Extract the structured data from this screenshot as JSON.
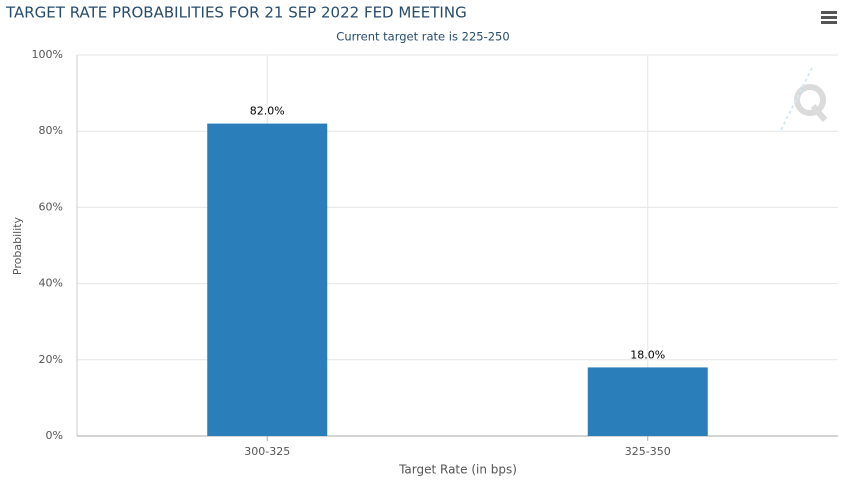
{
  "chart_data": {
    "type": "bar",
    "title": "TARGET RATE PROBABILITIES FOR 21 SEP 2022 FED MEETING",
    "subtitle": "Current target rate is 225-250",
    "x_label": "Target Rate (in bps)",
    "y_label": "Probability",
    "categories": [
      "300-325",
      "325-350"
    ],
    "values": [
      82,
      18
    ],
    "value_labels": [
      "82.0%",
      "18.0%"
    ],
    "color": "#2a7fba",
    "ylim": [
      0,
      100
    ],
    "yticks": [
      {
        "value": 0,
        "label": "0%"
      },
      {
        "value": 20,
        "label": "20%"
      },
      {
        "value": 40,
        "label": "40%"
      },
      {
        "value": 60,
        "label": "60%"
      },
      {
        "value": 80,
        "label": "80%"
      },
      {
        "value": 100,
        "label": "100%"
      }
    ],
    "grid": true
  }
}
